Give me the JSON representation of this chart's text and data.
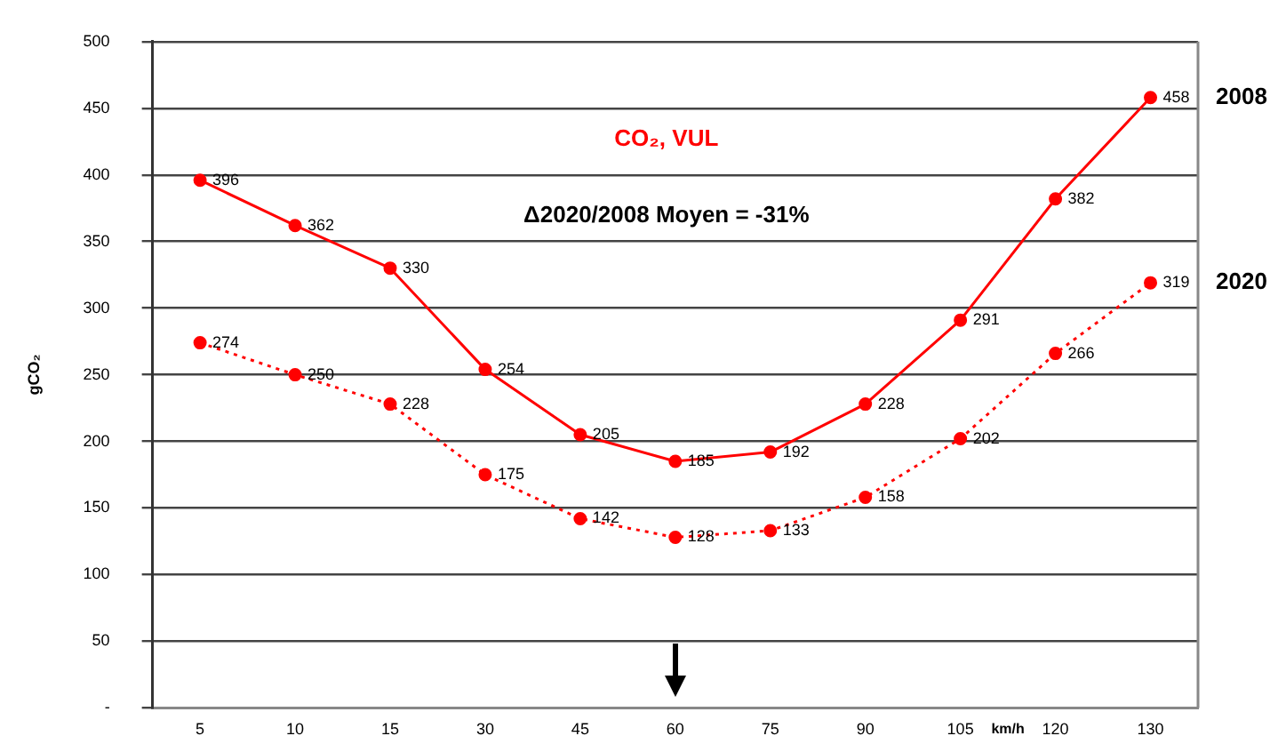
{
  "chart_data": {
    "type": "line",
    "title": "CO₂, VUL",
    "xlabel": "km/h",
    "ylabel": "gCO₂",
    "categories": [
      "5",
      "10",
      "15",
      "30",
      "45",
      "60",
      "75",
      "90",
      "105",
      "120",
      "130"
    ],
    "series": [
      {
        "name": "2008",
        "color": "#ff0000",
        "line_style": "solid",
        "values": [
          396,
          362,
          330,
          254,
          205,
          185,
          192,
          228,
          291,
          382,
          458
        ]
      },
      {
        "name": "2020",
        "color": "#ff0000",
        "line_style": "dotted",
        "values": [
          274,
          250,
          228,
          175,
          142,
          128,
          133,
          158,
          202,
          266,
          319
        ]
      }
    ],
    "ylim": [
      0,
      500
    ],
    "yticks": [
      {
        "value": 0,
        "label": "-"
      },
      50,
      100,
      150,
      200,
      250,
      300,
      350,
      400,
      450,
      500
    ],
    "grid": "y",
    "marker": "circle",
    "data_labels": true,
    "legend": false,
    "annotations": [
      "Δ2020/2008 Moyen = -31%"
    ]
  }
}
